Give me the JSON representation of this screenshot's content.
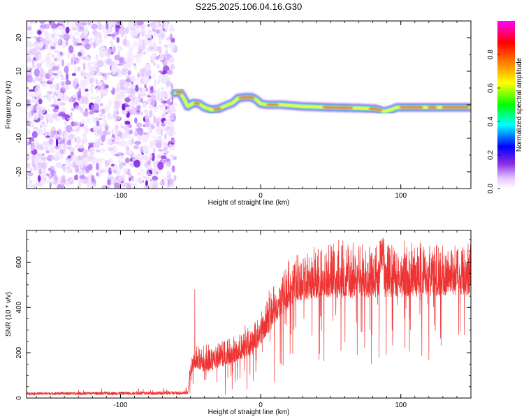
{
  "title": "S225.2025.106.04.16.G30",
  "chart_data": [
    {
      "type": "heatmap",
      "xlabel": "Height of straight line (km)",
      "ylabel": "Frequency (Hz)",
      "xlim": [
        -167,
        150
      ],
      "ylim": [
        -25,
        25
      ],
      "xticks": [
        -100,
        0,
        100
      ],
      "yticks": [
        -20,
        -10,
        0,
        10,
        20
      ],
      "colorbar": {
        "label": "Normalized spectral amplitude",
        "range": [
          0,
          1
        ],
        "ticks": [
          "0.0",
          "0.2",
          "0.4",
          "0.6",
          "0.8"
        ],
        "colors": [
          "#ffffff",
          "#e6c8ff",
          "#8a2be2",
          "#0000ff",
          "#00ffff",
          "#00ff00",
          "#ffff00",
          "#ff8000",
          "#ff0000",
          "#ff00ff"
        ]
      },
      "noise_region_x": [
        -167,
        -61
      ],
      "ridge": [
        {
          "x": -61,
          "y": 3.5
        },
        {
          "x": -58,
          "y": 4
        },
        {
          "x": -55,
          "y": 2
        },
        {
          "x": -52,
          "y": -0.5
        },
        {
          "x": -48,
          "y": 0.5
        },
        {
          "x": -44,
          "y": 0.3
        },
        {
          "x": -40,
          "y": -0.8
        },
        {
          "x": -35,
          "y": -1.5
        },
        {
          "x": -30,
          "y": -1.2
        },
        {
          "x": -25,
          "y": -0.3
        },
        {
          "x": -20,
          "y": 0.5
        },
        {
          "x": -16,
          "y": 2
        },
        {
          "x": -10,
          "y": 2.3
        },
        {
          "x": -6,
          "y": 2.2
        },
        {
          "x": -3,
          "y": 1.5
        },
        {
          "x": 0,
          "y": 0.3
        },
        {
          "x": 5,
          "y": 0
        },
        {
          "x": 15,
          "y": 0
        },
        {
          "x": 30,
          "y": -0.5
        },
        {
          "x": 50,
          "y": -0.8
        },
        {
          "x": 70,
          "y": -1
        },
        {
          "x": 82,
          "y": -1.2
        },
        {
          "x": 88,
          "y": -2
        },
        {
          "x": 93,
          "y": -1.5
        },
        {
          "x": 97,
          "y": -0.8
        },
        {
          "x": 110,
          "y": -0.8
        },
        {
          "x": 125,
          "y": -0.8
        },
        {
          "x": 150,
          "y": -0.8
        }
      ]
    },
    {
      "type": "line",
      "xlabel": "Height of straight line (km)",
      "ylabel": "SNR (10 * v/v)",
      "xlim": [
        -167,
        150
      ],
      "ylim": [
        0,
        740
      ],
      "xticks": [
        -100,
        0,
        100
      ],
      "yticks": [
        0,
        200,
        400,
        600
      ],
      "color": "#ee3333",
      "envelope": [
        {
          "x": -167,
          "base": 20,
          "amp": 8
        },
        {
          "x": -60,
          "base": 22,
          "amp": 10
        },
        {
          "x": -52,
          "base": 25,
          "amp": 10
        },
        {
          "x": -50,
          "base": 150,
          "amp": 60
        },
        {
          "x": -46,
          "base": 200,
          "amp": 80
        },
        {
          "x": -40,
          "base": 190,
          "amp": 100
        },
        {
          "x": -20,
          "base": 230,
          "amp": 100
        },
        {
          "x": -5,
          "base": 290,
          "amp": 120
        },
        {
          "x": 5,
          "base": 400,
          "amp": 150
        },
        {
          "x": 15,
          "base": 500,
          "amp": 170
        },
        {
          "x": 25,
          "base": 570,
          "amp": 180
        },
        {
          "x": 40,
          "base": 600,
          "amp": 200
        },
        {
          "x": 150,
          "base": 610,
          "amp": 200
        }
      ],
      "spikes": [
        {
          "x": -47,
          "y": 480
        },
        {
          "x": 87,
          "y": 730
        }
      ]
    }
  ]
}
